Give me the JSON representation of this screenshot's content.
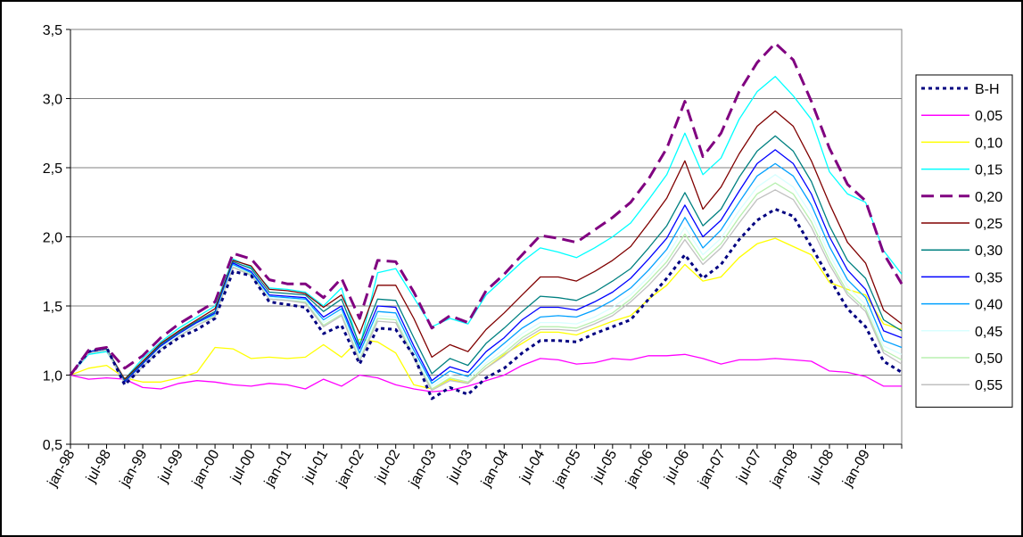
{
  "chart_data": {
    "type": "line",
    "title": "",
    "xlabel": "",
    "ylabel": "",
    "ylim": [
      0.5,
      3.5
    ],
    "yticks": [
      "0,5",
      "1,0",
      "1,5",
      "2,0",
      "2,5",
      "3,0",
      "3,5"
    ],
    "xtick_labels": [
      "jan-98",
      "jul-98",
      "jan-99",
      "jul-99",
      "jan-00",
      "jul-00",
      "jan-01",
      "jul-01",
      "jan-02",
      "jul-02",
      "jan-03",
      "jul-03",
      "jan-04",
      "jul-04",
      "jan-05",
      "jul-05",
      "jan-06",
      "jul-06",
      "jan-07",
      "jul-07",
      "jan-08",
      "jul-08",
      "jan-09"
    ],
    "grid": true,
    "legend_position": "right",
    "series": [
      {
        "name": "B-H",
        "color": "#000080",
        "style": "dotted",
        "values": [
          1.0,
          1.17,
          1.2,
          0.93,
          1.06,
          1.18,
          1.27,
          1.33,
          1.41,
          1.75,
          1.72,
          1.53,
          1.51,
          1.49,
          1.3,
          1.36,
          1.08,
          1.34,
          1.33,
          1.14,
          0.83,
          0.91,
          0.86,
          0.98,
          1.05,
          1.16,
          1.25,
          1.25,
          1.24,
          1.3,
          1.35,
          1.4,
          1.55,
          1.7,
          1.87,
          1.7,
          1.8,
          1.98,
          2.12,
          2.2,
          2.15,
          1.93,
          1.7,
          1.48,
          1.35,
          1.1,
          1.02
        ]
      },
      {
        "name": "0,05",
        "color": "#ff00ff",
        "style": "solid",
        "values": [
          1.0,
          0.97,
          0.98,
          0.97,
          0.91,
          0.9,
          0.94,
          0.96,
          0.95,
          0.93,
          0.92,
          0.94,
          0.93,
          0.9,
          0.97,
          0.92,
          1.0,
          0.98,
          0.93,
          0.9,
          0.88,
          0.89,
          0.92,
          0.96,
          1.0,
          1.07,
          1.12,
          1.11,
          1.08,
          1.09,
          1.12,
          1.11,
          1.14,
          1.14,
          1.15,
          1.12,
          1.08,
          1.11,
          1.11,
          1.12,
          1.11,
          1.1,
          1.03,
          1.02,
          0.99,
          0.92,
          0.92
        ]
      },
      {
        "name": "0,10",
        "color": "#ffff00",
        "style": "solid",
        "values": [
          1.0,
          1.05,
          1.07,
          0.98,
          0.95,
          0.95,
          0.98,
          1.02,
          1.2,
          1.19,
          1.12,
          1.13,
          1.12,
          1.13,
          1.22,
          1.13,
          1.26,
          1.24,
          1.16,
          0.93,
          0.9,
          0.97,
          0.94,
          1.05,
          1.15,
          1.23,
          1.31,
          1.31,
          1.29,
          1.34,
          1.39,
          1.43,
          1.55,
          1.65,
          1.8,
          1.68,
          1.71,
          1.85,
          1.95,
          1.99,
          1.93,
          1.87,
          1.67,
          1.62,
          1.58,
          1.37,
          1.33
        ]
      },
      {
        "name": "0,15",
        "color": "#00ffff",
        "style": "solid",
        "values": [
          1.0,
          1.15,
          1.17,
          0.97,
          1.12,
          1.24,
          1.34,
          1.42,
          1.5,
          1.84,
          1.78,
          1.63,
          1.62,
          1.6,
          1.5,
          1.63,
          1.2,
          1.74,
          1.77,
          1.56,
          1.35,
          1.41,
          1.37,
          1.58,
          1.7,
          1.82,
          1.92,
          1.89,
          1.85,
          1.92,
          2.0,
          2.1,
          2.27,
          2.45,
          2.75,
          2.45,
          2.57,
          2.85,
          3.05,
          3.16,
          3.02,
          2.85,
          2.47,
          2.31,
          2.25,
          1.9,
          1.73
        ]
      },
      {
        "name": "0,20",
        "color": "#800080",
        "style": "dashed",
        "values": [
          1.0,
          1.18,
          1.2,
          1.05,
          1.14,
          1.27,
          1.37,
          1.45,
          1.53,
          1.88,
          1.84,
          1.69,
          1.66,
          1.66,
          1.56,
          1.7,
          1.41,
          1.83,
          1.82,
          1.6,
          1.34,
          1.43,
          1.38,
          1.61,
          1.73,
          1.87,
          2.01,
          1.99,
          1.96,
          2.05,
          2.14,
          2.25,
          2.42,
          2.64,
          2.98,
          2.58,
          2.75,
          3.05,
          3.26,
          3.4,
          3.28,
          2.98,
          2.64,
          2.38,
          2.26,
          1.88,
          1.66
        ]
      },
      {
        "name": "0,25",
        "color": "#800000",
        "style": "solid",
        "values": [
          1.0,
          1.17,
          1.19,
          0.97,
          1.1,
          1.23,
          1.32,
          1.4,
          1.48,
          1.83,
          1.79,
          1.62,
          1.61,
          1.59,
          1.49,
          1.58,
          1.3,
          1.65,
          1.65,
          1.41,
          1.13,
          1.22,
          1.17,
          1.33,
          1.45,
          1.58,
          1.71,
          1.71,
          1.68,
          1.75,
          1.83,
          1.93,
          2.1,
          2.28,
          2.55,
          2.2,
          2.36,
          2.6,
          2.8,
          2.91,
          2.8,
          2.55,
          2.24,
          1.96,
          1.81,
          1.47,
          1.37
        ]
      },
      {
        "name": "0,30",
        "color": "#008080",
        "style": "solid",
        "values": [
          1.0,
          1.17,
          1.19,
          0.96,
          1.09,
          1.22,
          1.31,
          1.39,
          1.46,
          1.82,
          1.77,
          1.6,
          1.59,
          1.58,
          1.46,
          1.55,
          1.22,
          1.55,
          1.54,
          1.27,
          1.01,
          1.12,
          1.07,
          1.23,
          1.34,
          1.46,
          1.57,
          1.56,
          1.54,
          1.6,
          1.68,
          1.77,
          1.92,
          2.08,
          2.32,
          2.08,
          2.2,
          2.43,
          2.62,
          2.73,
          2.62,
          2.4,
          2.08,
          1.83,
          1.7,
          1.4,
          1.32
        ]
      },
      {
        "name": "0,35",
        "color": "#0000ff",
        "style": "solid",
        "values": [
          1.0,
          1.17,
          1.18,
          0.95,
          1.08,
          1.21,
          1.3,
          1.38,
          1.45,
          1.81,
          1.75,
          1.58,
          1.57,
          1.56,
          1.42,
          1.5,
          1.19,
          1.5,
          1.49,
          1.21,
          0.96,
          1.06,
          1.02,
          1.17,
          1.27,
          1.4,
          1.49,
          1.49,
          1.47,
          1.53,
          1.6,
          1.7,
          1.84,
          1.99,
          2.23,
          2.0,
          2.12,
          2.33,
          2.53,
          2.63,
          2.53,
          2.31,
          2.0,
          1.76,
          1.62,
          1.32,
          1.27
        ]
      },
      {
        "name": "0,40",
        "color": "#00a0ff",
        "style": "solid",
        "values": [
          1.0,
          1.16,
          1.18,
          0.94,
          1.07,
          1.2,
          1.29,
          1.37,
          1.44,
          1.8,
          1.74,
          1.57,
          1.56,
          1.55,
          1.4,
          1.48,
          1.16,
          1.46,
          1.45,
          1.18,
          0.94,
          1.03,
          0.99,
          1.12,
          1.23,
          1.34,
          1.42,
          1.43,
          1.42,
          1.47,
          1.54,
          1.63,
          1.76,
          1.91,
          2.14,
          1.92,
          2.05,
          2.25,
          2.44,
          2.53,
          2.44,
          2.23,
          1.93,
          1.69,
          1.56,
          1.25,
          1.2
        ]
      },
      {
        "name": "0,45",
        "color": "#d8ffff",
        "style": "solid",
        "values": [
          1.0,
          1.16,
          1.18,
          0.94,
          1.07,
          1.2,
          1.29,
          1.37,
          1.43,
          1.79,
          1.73,
          1.56,
          1.55,
          1.54,
          1.38,
          1.46,
          1.13,
          1.43,
          1.42,
          1.15,
          0.92,
          1.0,
          0.97,
          1.09,
          1.19,
          1.3,
          1.38,
          1.38,
          1.37,
          1.42,
          1.49,
          1.58,
          1.71,
          1.86,
          2.07,
          1.87,
          1.99,
          2.19,
          2.36,
          2.45,
          2.36,
          2.16,
          1.87,
          1.64,
          1.51,
          1.21,
          1.15
        ]
      },
      {
        "name": "0,50",
        "color": "#b8f0b0",
        "style": "solid",
        "values": [
          1.0,
          1.16,
          1.18,
          0.94,
          1.06,
          1.19,
          1.28,
          1.36,
          1.43,
          1.78,
          1.73,
          1.55,
          1.54,
          1.53,
          1.36,
          1.44,
          1.11,
          1.41,
          1.4,
          1.13,
          0.9,
          0.98,
          0.95,
          1.07,
          1.16,
          1.27,
          1.35,
          1.35,
          1.34,
          1.39,
          1.45,
          1.55,
          1.68,
          1.82,
          2.02,
          1.83,
          1.95,
          2.14,
          2.31,
          2.39,
          2.31,
          2.11,
          1.83,
          1.6,
          1.48,
          1.18,
          1.11
        ]
      },
      {
        "name": "0,55",
        "color": "#c0c0c0",
        "style": "solid",
        "values": [
          1.0,
          1.16,
          1.18,
          0.94,
          1.06,
          1.19,
          1.28,
          1.36,
          1.42,
          1.78,
          1.72,
          1.55,
          1.54,
          1.52,
          1.35,
          1.43,
          1.1,
          1.39,
          1.38,
          1.12,
          0.89,
          0.96,
          0.94,
          1.05,
          1.14,
          1.25,
          1.33,
          1.33,
          1.32,
          1.37,
          1.43,
          1.53,
          1.65,
          1.79,
          1.98,
          1.8,
          1.92,
          2.1,
          2.27,
          2.34,
          2.27,
          2.07,
          1.8,
          1.58,
          1.46,
          1.16,
          1.08
        ]
      }
    ]
  }
}
